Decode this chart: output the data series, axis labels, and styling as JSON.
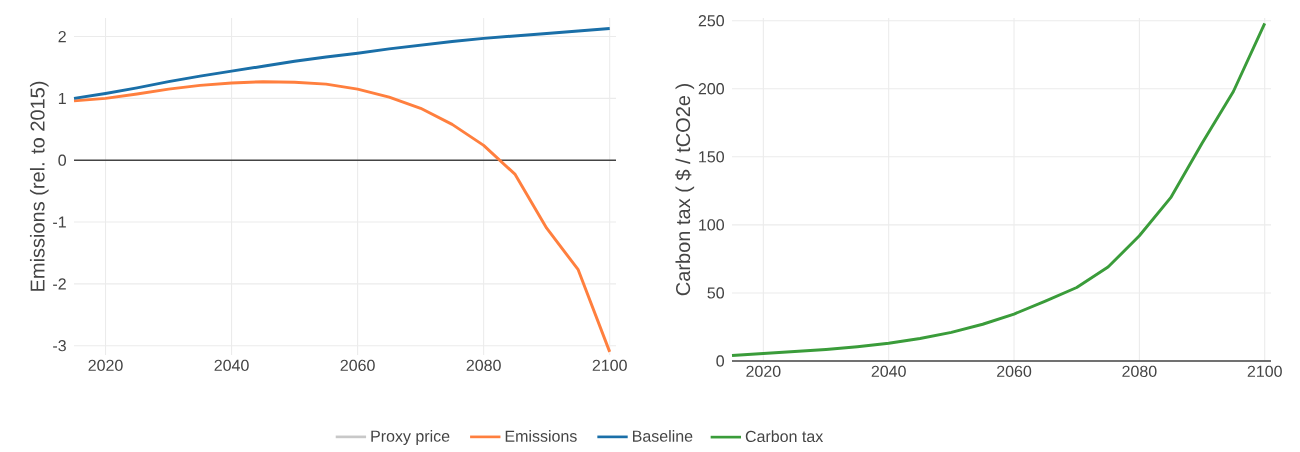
{
  "chart_data": [
    {
      "type": "line",
      "ylabel": "Emissions (rel. to 2015)",
      "xlim": [
        2015,
        2101
      ],
      "ylim": [
        -3.15,
        2.3
      ],
      "xticks": [
        2020,
        2040,
        2060,
        2080,
        2100
      ],
      "yticks": [
        -3,
        -2,
        -1,
        0,
        1,
        2
      ],
      "grid": true,
      "legend": "bottom",
      "x": [
        2015,
        2020,
        2025,
        2030,
        2035,
        2040,
        2045,
        2050,
        2055,
        2060,
        2065,
        2070,
        2075,
        2080,
        2085,
        2090,
        2095,
        2100
      ],
      "ref_lines": [
        {
          "axis": "y",
          "value": 0,
          "color": "#444444"
        }
      ],
      "series": [
        {
          "name": "Proxy price",
          "color": "#c8c8c8",
          "values": [
            null,
            null,
            null,
            null,
            null,
            null,
            null,
            null,
            null,
            null,
            null,
            null,
            null,
            null,
            null,
            null,
            null,
            null
          ]
        },
        {
          "name": "Emissions",
          "color": "#ff7f3e",
          "values": [
            0.96,
            1.0,
            1.07,
            1.15,
            1.21,
            1.25,
            1.27,
            1.26,
            1.23,
            1.15,
            1.02,
            0.84,
            0.58,
            0.24,
            -0.23,
            -1.1,
            -1.77,
            -3.1
          ]
        },
        {
          "name": "Baseline",
          "color": "#1a6fa8",
          "values": [
            1.0,
            1.08,
            1.17,
            1.27,
            1.36,
            1.44,
            1.52,
            1.6,
            1.67,
            1.73,
            1.8,
            1.86,
            1.92,
            1.97,
            2.01,
            2.05,
            2.09,
            2.13
          ]
        }
      ]
    },
    {
      "type": "line",
      "ylabel": "Carbon tax ( $ / tCO2e )",
      "xlim": [
        2015,
        2101
      ],
      "ylim": [
        0,
        252
      ],
      "xticks": [
        2020,
        2040,
        2060,
        2080,
        2100
      ],
      "yticks": [
        0,
        50,
        100,
        150,
        200,
        250
      ],
      "grid": true,
      "legend": "bottom",
      "x": [
        2015,
        2020,
        2025,
        2030,
        2035,
        2040,
        2045,
        2050,
        2055,
        2060,
        2065,
        2070,
        2075,
        2080,
        2085,
        2090,
        2095,
        2100
      ],
      "series": [
        {
          "name": "Carbon tax",
          "color": "#3a9c3a",
          "values": [
            4,
            5.5,
            7,
            8.5,
            10.5,
            13,
            16.5,
            21,
            27,
            34.5,
            44,
            54,
            69,
            92,
            120,
            160,
            198,
            248
          ]
        }
      ]
    }
  ]
}
